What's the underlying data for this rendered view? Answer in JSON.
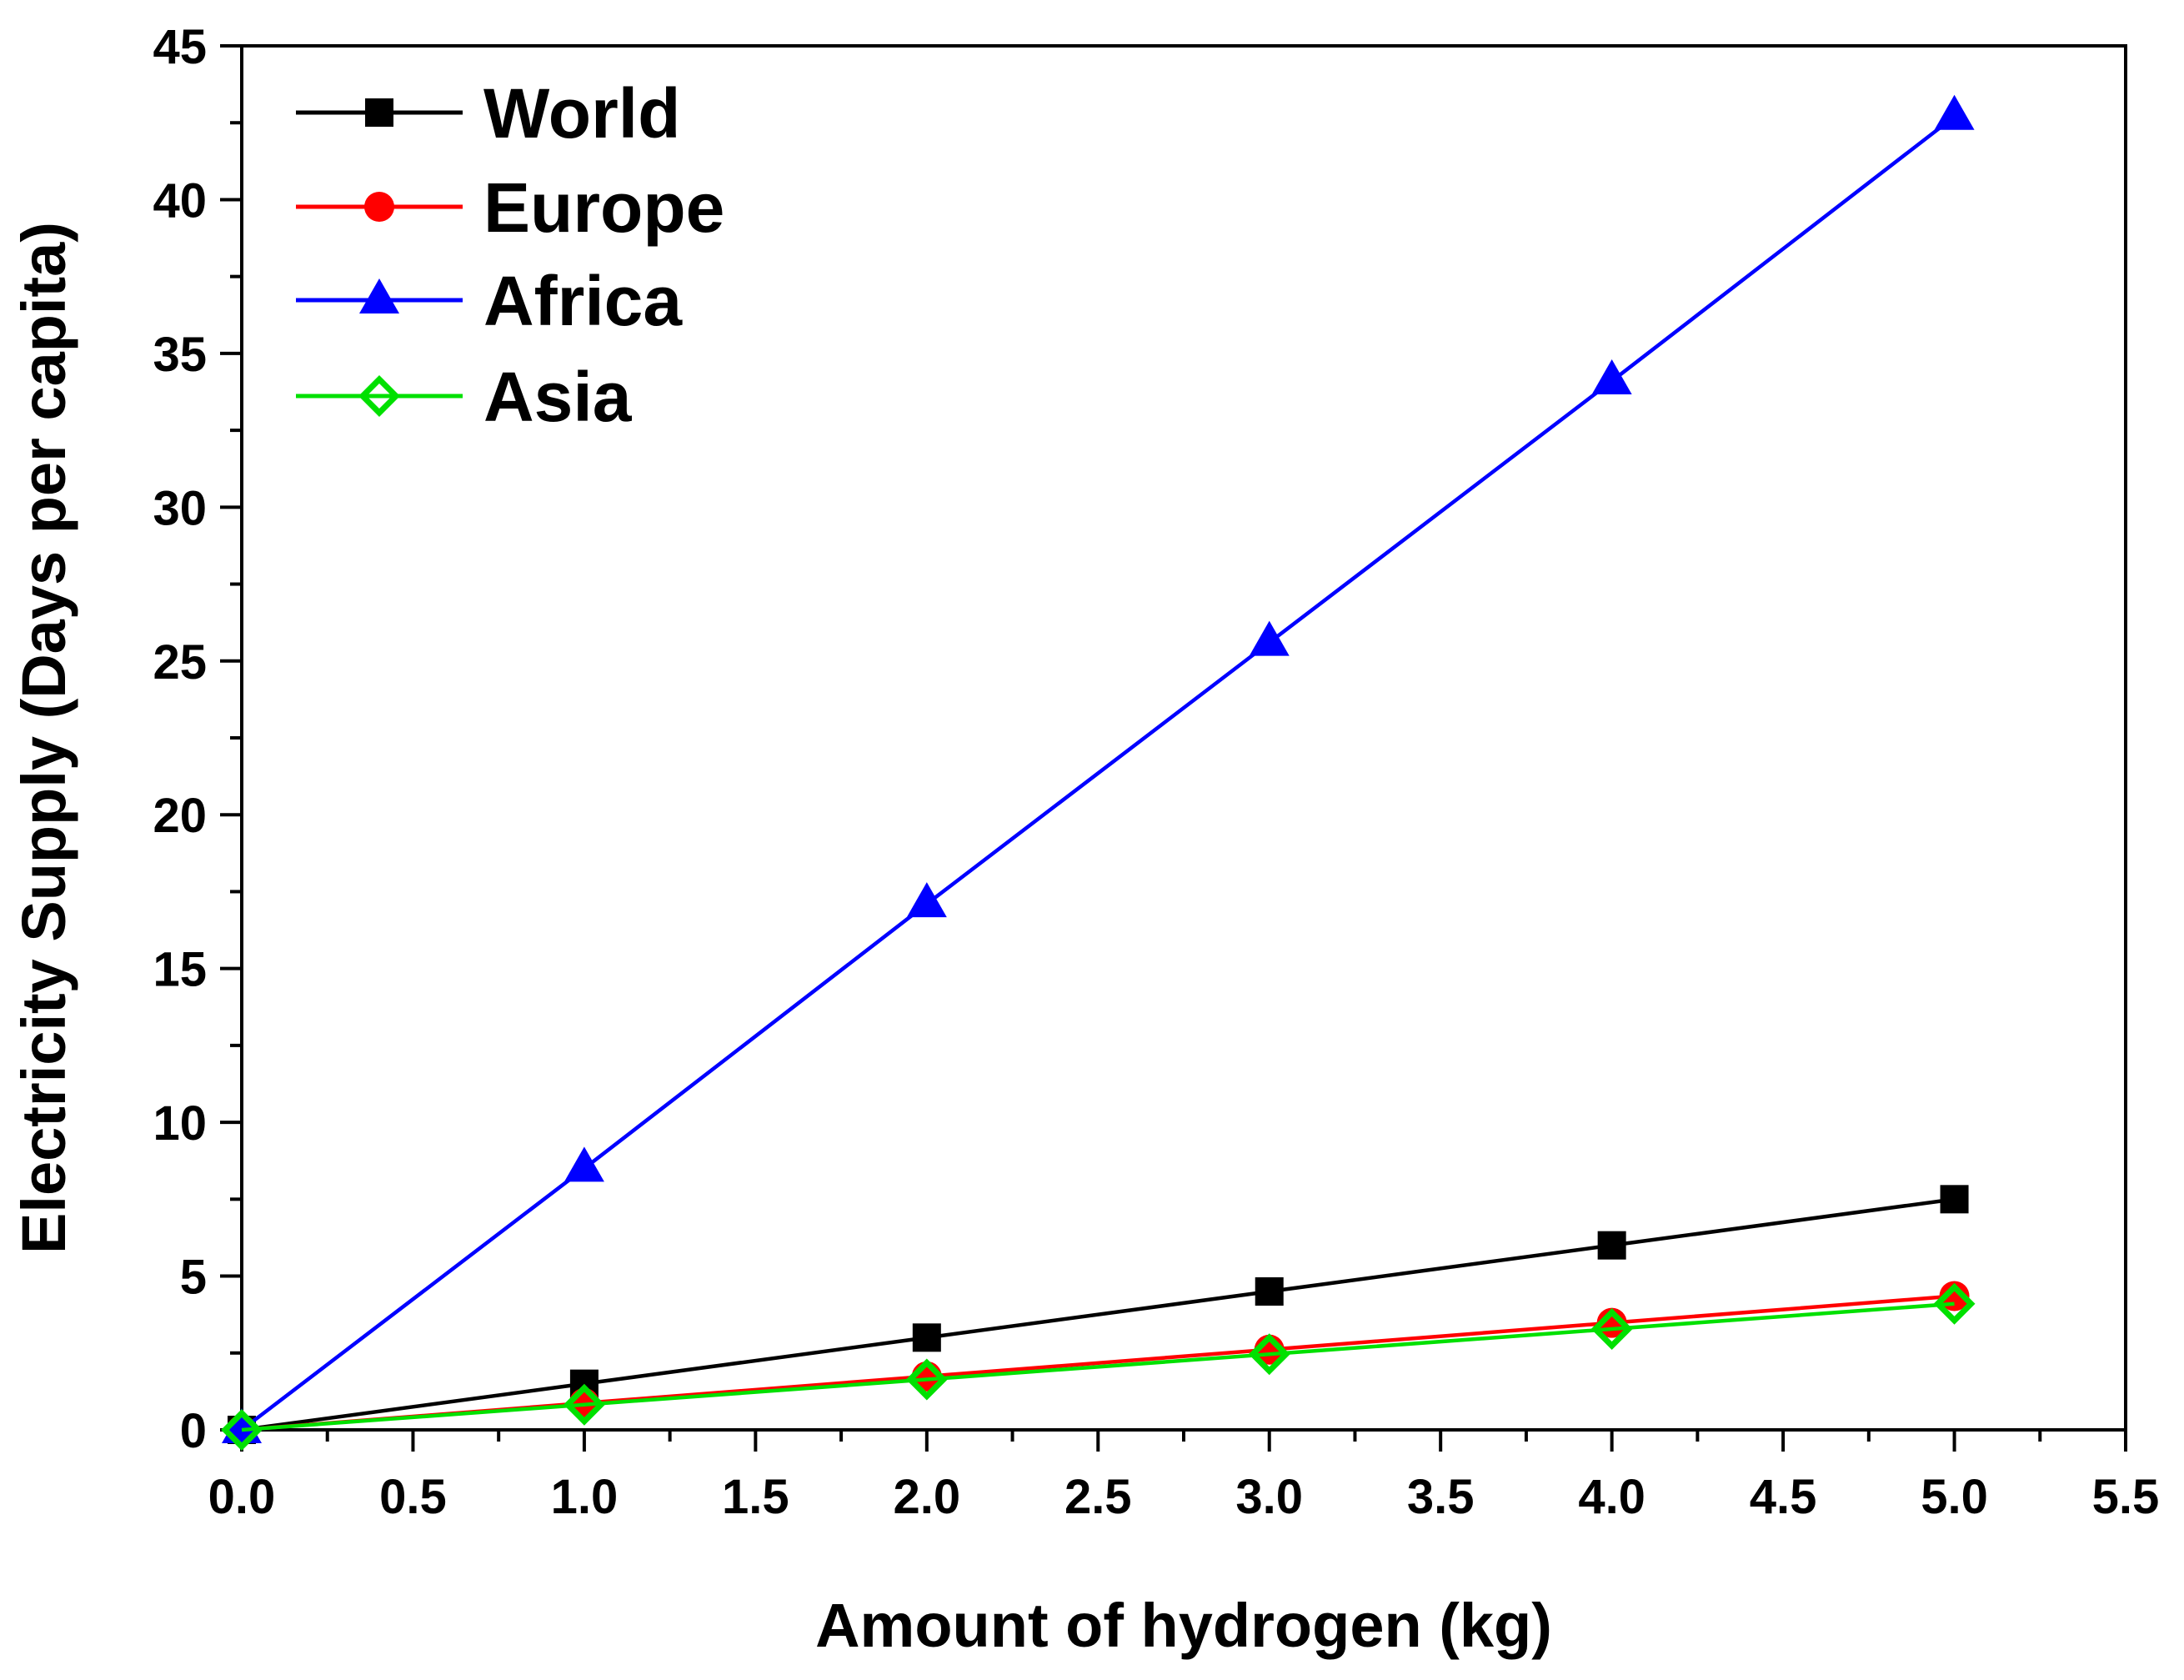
{
  "chart_data": {
    "type": "line",
    "title": "",
    "xlabel": "Amount of hydrogen (kg)",
    "ylabel": "Electricity Supply (Days per capita)",
    "xlim": [
      0.0,
      5.5
    ],
    "ylim": [
      0,
      45
    ],
    "x_ticks": [
      "0.0",
      "0.5",
      "1.0",
      "1.5",
      "2.0",
      "2.5",
      "3.0",
      "3.5",
      "4.0",
      "4.5",
      "5.0",
      "5.5"
    ],
    "y_ticks": [
      "0",
      "5",
      "10",
      "15",
      "20",
      "25",
      "30",
      "35",
      "40",
      "45"
    ],
    "grid": false,
    "legend_position": "top-left",
    "x": [
      0,
      1,
      2,
      3,
      4,
      5
    ],
    "series": [
      {
        "name": "World",
        "color": "#000000",
        "marker": "square",
        "values": [
          0,
          1.5,
          3.0,
          4.5,
          6.0,
          7.5
        ]
      },
      {
        "name": "Europe",
        "color": "#ff0000",
        "marker": "circle",
        "values": [
          0,
          0.87,
          1.74,
          2.61,
          3.48,
          4.35
        ]
      },
      {
        "name": "Africa",
        "color": "#0000ff",
        "marker": "triangle",
        "values": [
          0,
          8.5,
          17.1,
          25.6,
          34.1,
          42.7
        ]
      },
      {
        "name": "Asia",
        "color": "#00e000",
        "marker": "diamond",
        "values": [
          0,
          0.82,
          1.64,
          2.46,
          3.28,
          4.1
        ]
      }
    ]
  }
}
